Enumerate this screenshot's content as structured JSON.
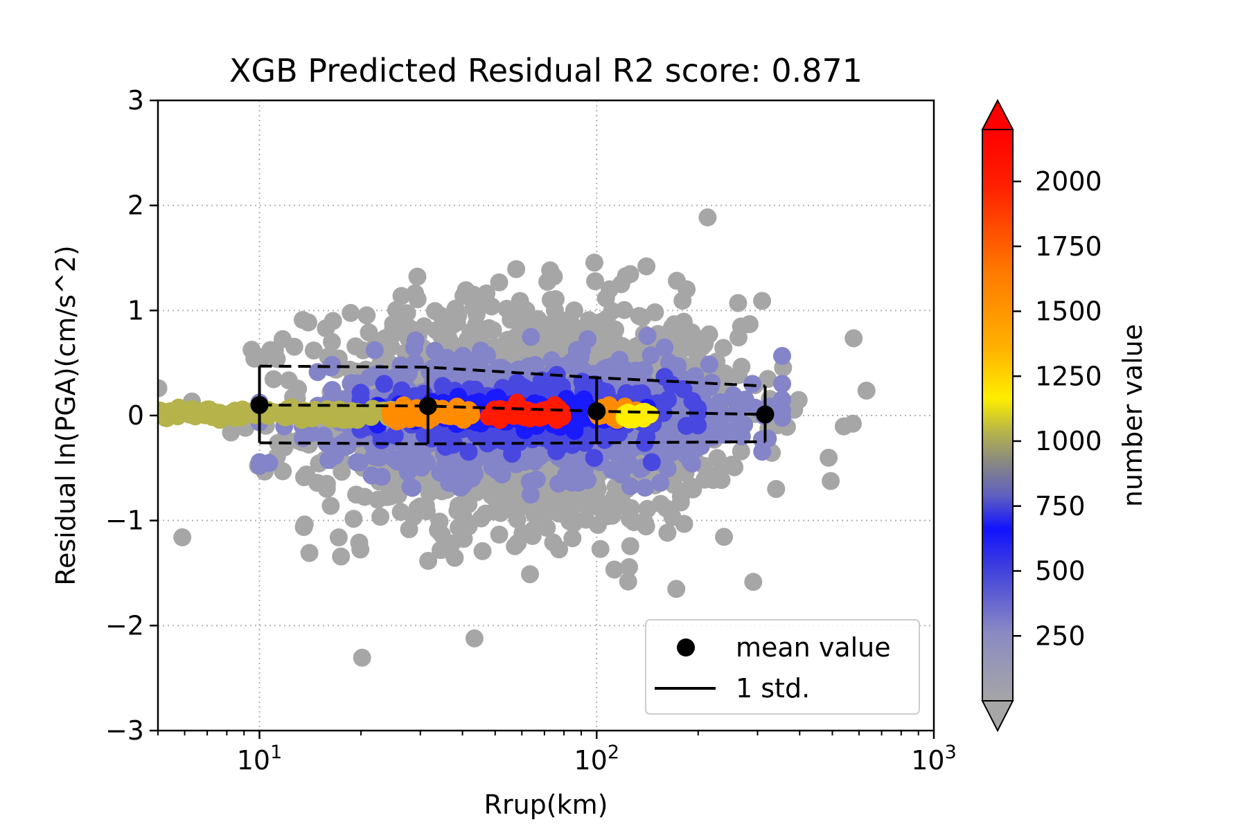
{
  "chart_data": {
    "type": "scatter",
    "title": "XGB Predicted Residual R2 score: 0.871",
    "xlabel": "Rrup(km)",
    "ylabel": "Residual ln(PGA)(cm/s^2)",
    "xscale": "log",
    "xlim": [
      5,
      1000
    ],
    "ylim": [
      -3,
      3
    ],
    "grid": true,
    "x_ticks": [
      {
        "value": 10,
        "base": "10",
        "exp": "1"
      },
      {
        "value": 100,
        "base": "10",
        "exp": "2"
      },
      {
        "value": 1000,
        "base": "10",
        "exp": "3"
      }
    ],
    "y_ticks": [
      {
        "value": 3,
        "label": "3"
      },
      {
        "value": 2,
        "label": "2"
      },
      {
        "value": 1,
        "label": "1"
      },
      {
        "value": 0,
        "label": "0"
      },
      {
        "value": -1,
        "label": "−1"
      },
      {
        "value": -2,
        "label": "−2"
      },
      {
        "value": -3,
        "label": "−3"
      }
    ],
    "mean_values": {
      "name": "mean value",
      "x": [
        10,
        31.6,
        100,
        316
      ],
      "y": [
        0.1,
        0.09,
        0.04,
        0.01
      ]
    },
    "std_band": {
      "name": "1 std.",
      "x": [
        10,
        31.6,
        100,
        316
      ],
      "upper": [
        0.47,
        0.46,
        0.36,
        0.28
      ],
      "lower": [
        -0.26,
        -0.27,
        -0.26,
        -0.25
      ]
    },
    "colorbar": {
      "label": "number value",
      "min": 0,
      "max": 2200,
      "ticks": [
        {
          "value": 250,
          "label": "250"
        },
        {
          "value": 500,
          "label": "500"
        },
        {
          "value": 750,
          "label": "750"
        },
        {
          "value": 1000,
          "label": "1000"
        },
        {
          "value": 1250,
          "label": "1250"
        },
        {
          "value": 1500,
          "label": "1500"
        },
        {
          "value": 1750,
          "label": "1750"
        },
        {
          "value": 2000,
          "label": "2000"
        }
      ],
      "extend": "both"
    },
    "legend": {
      "placement": "lower right",
      "entries": [
        "mean value",
        "1 std."
      ]
    },
    "density_colors": {
      "low": "#a6a6a6",
      "mid": "#1a1aff",
      "olive": "#b5b34a",
      "orange": "#ff8c00",
      "yellow": "#ffee00",
      "high": "#ff1a00"
    }
  }
}
